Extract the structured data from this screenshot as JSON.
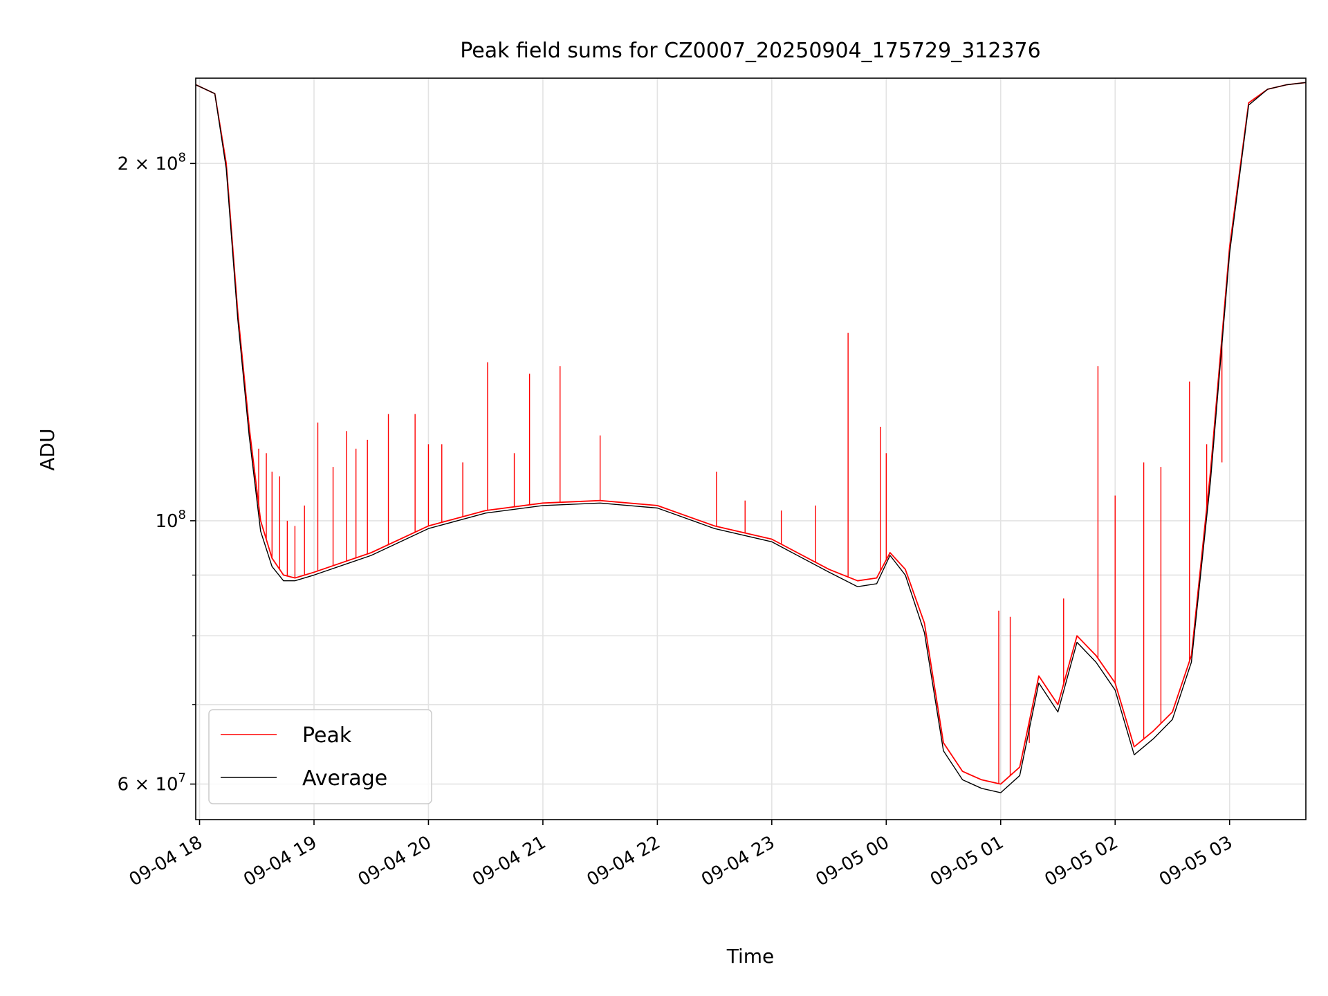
{
  "chart_data": {
    "type": "line",
    "title": "Peak field sums for CZ0007_20250904_175729_312376",
    "xlabel": "Time",
    "ylabel": "ADU",
    "yscale": "log",
    "ylim": [
      56000000,
      236000000
    ],
    "xlim": [
      "2025-09-04 17:58",
      "2025-09-05 03:40"
    ],
    "x_ticks": [
      "09-04 18",
      "09-04 19",
      "09-04 20",
      "09-04 21",
      "09-04 22",
      "09-04 23",
      "09-05 00",
      "09-05 01",
      "09-05 02",
      "09-05 03"
    ],
    "y_ticks": [
      {
        "value": 60000000,
        "label": "6 × 10⁷",
        "mantissa": "6 × 10",
        "exp": "7"
      },
      {
        "value": 100000000,
        "label": "10⁸",
        "mantissa": "10",
        "exp": "8"
      },
      {
        "value": 200000000,
        "label": "2 × 10⁸",
        "mantissa": "2 × 10",
        "exp": "8"
      }
    ],
    "y_minor_ticks": [
      70000000,
      80000000,
      90000000
    ],
    "grid": true,
    "legend": "lower-left",
    "series": [
      {
        "name": "Peak",
        "color": "#ff0000",
        "x": [
          "2025-09-04 17:58",
          "2025-09-04 18:08",
          "2025-09-04 18:14",
          "2025-09-04 18:20",
          "2025-09-04 18:26",
          "2025-09-04 18:32",
          "2025-09-04 18:38",
          "2025-09-04 18:44",
          "2025-09-04 18:50",
          "2025-09-04 19:00",
          "2025-09-04 19:30",
          "2025-09-04 20:00",
          "2025-09-04 20:30",
          "2025-09-04 21:00",
          "2025-09-04 21:30",
          "2025-09-04 22:00",
          "2025-09-04 22:30",
          "2025-09-04 23:00",
          "2025-09-04 23:30",
          "2025-09-04 23:45",
          "2025-09-04 23:55",
          "2025-09-05 00:02",
          "2025-09-05 00:10",
          "2025-09-05 00:20",
          "2025-09-05 00:30",
          "2025-09-05 00:40",
          "2025-09-05 00:50",
          "2025-09-05 01:00",
          "2025-09-05 01:10",
          "2025-09-05 01:20",
          "2025-09-05 01:30",
          "2025-09-05 01:40",
          "2025-09-05 01:50",
          "2025-09-05 02:00",
          "2025-09-05 02:10",
          "2025-09-05 02:20",
          "2025-09-05 02:30",
          "2025-09-05 02:40",
          "2025-09-05 02:50",
          "2025-09-05 03:00",
          "2025-09-05 03:10",
          "2025-09-05 03:20",
          "2025-09-05 03:30",
          "2025-09-05 03:40"
        ],
        "y": [
          233000000,
          229000000,
          200000000,
          150000000,
          120000000,
          100000000,
          93000000,
          90000000,
          89500000,
          90500000,
          94000000,
          99000000,
          102000000,
          103500000,
          104000000,
          103000000,
          99000000,
          96500000,
          91000000,
          89000000,
          89500000,
          94000000,
          91000000,
          82000000,
          65000000,
          61500000,
          60500000,
          60000000,
          62000000,
          74000000,
          70000000,
          80000000,
          77000000,
          73000000,
          64500000,
          66500000,
          69000000,
          77000000,
          110000000,
          170000000,
          225000000,
          231000000,
          233000000,
          234000000
        ]
      },
      {
        "name": "Average",
        "color": "#000000",
        "x": [
          "2025-09-04 17:58",
          "2025-09-04 18:08",
          "2025-09-04 18:14",
          "2025-09-04 18:20",
          "2025-09-04 18:26",
          "2025-09-04 18:32",
          "2025-09-04 18:38",
          "2025-09-04 18:44",
          "2025-09-04 18:50",
          "2025-09-04 19:00",
          "2025-09-04 19:30",
          "2025-09-04 20:00",
          "2025-09-04 20:30",
          "2025-09-04 21:00",
          "2025-09-04 21:30",
          "2025-09-04 22:00",
          "2025-09-04 22:30",
          "2025-09-04 23:00",
          "2025-09-04 23:30",
          "2025-09-04 23:45",
          "2025-09-04 23:55",
          "2025-09-05 00:02",
          "2025-09-05 00:10",
          "2025-09-05 00:20",
          "2025-09-05 00:30",
          "2025-09-05 00:40",
          "2025-09-05 00:50",
          "2025-09-05 01:00",
          "2025-09-05 01:10",
          "2025-09-05 01:20",
          "2025-09-05 01:30",
          "2025-09-05 01:40",
          "2025-09-05 01:50",
          "2025-09-05 02:00",
          "2025-09-05 02:10",
          "2025-09-05 02:20",
          "2025-09-05 02:30",
          "2025-09-05 02:40",
          "2025-09-05 02:50",
          "2025-09-05 03:00",
          "2025-09-05 03:10",
          "2025-09-05 03:20",
          "2025-09-05 03:30",
          "2025-09-05 03:40"
        ],
        "y": [
          233000000,
          229000000,
          198000000,
          148000000,
          118000000,
          98000000,
          91500000,
          89000000,
          89000000,
          90000000,
          93500000,
          98500000,
          101500000,
          103000000,
          103500000,
          102500000,
          98500000,
          96000000,
          90500000,
          88000000,
          88500000,
          93500000,
          90000000,
          80500000,
          64000000,
          60500000,
          59500000,
          59000000,
          61000000,
          73000000,
          69000000,
          79000000,
          76000000,
          72000000,
          63500000,
          65500000,
          68000000,
          76000000,
          108000000,
          168000000,
          224000000,
          231000000,
          233000000,
          234000000
        ]
      }
    ],
    "spikes": {
      "series": "Peak",
      "points": [
        {
          "x": "2025-09-04 18:31",
          "y": 115000000
        },
        {
          "x": "2025-09-04 18:35",
          "y": 114000000
        },
        {
          "x": "2025-09-04 18:38",
          "y": 110000000
        },
        {
          "x": "2025-09-04 18:42",
          "y": 109000000
        },
        {
          "x": "2025-09-04 18:46",
          "y": 100000000
        },
        {
          "x": "2025-09-04 18:50",
          "y": 99000000
        },
        {
          "x": "2025-09-04 18:55",
          "y": 103000000
        },
        {
          "x": "2025-09-04 19:02",
          "y": 121000000
        },
        {
          "x": "2025-09-04 19:10",
          "y": 111000000
        },
        {
          "x": "2025-09-04 19:17",
          "y": 119000000
        },
        {
          "x": "2025-09-04 19:22",
          "y": 115000000
        },
        {
          "x": "2025-09-04 19:28",
          "y": 117000000
        },
        {
          "x": "2025-09-04 19:39",
          "y": 123000000
        },
        {
          "x": "2025-09-04 19:53",
          "y": 123000000
        },
        {
          "x": "2025-09-04 20:00",
          "y": 116000000
        },
        {
          "x": "2025-09-04 20:07",
          "y": 116000000
        },
        {
          "x": "2025-09-04 20:18",
          "y": 112000000
        },
        {
          "x": "2025-09-04 20:31",
          "y": 136000000
        },
        {
          "x": "2025-09-04 20:45",
          "y": 114000000
        },
        {
          "x": "2025-09-04 20:53",
          "y": 133000000
        },
        {
          "x": "2025-09-04 21:09",
          "y": 135000000
        },
        {
          "x": "2025-09-04 21:30",
          "y": 118000000
        },
        {
          "x": "2025-09-04 22:31",
          "y": 110000000
        },
        {
          "x": "2025-09-04 22:46",
          "y": 104000000
        },
        {
          "x": "2025-09-04 23:05",
          "y": 102000000
        },
        {
          "x": "2025-09-04 23:23",
          "y": 103000000
        },
        {
          "x": "2025-09-04 23:40",
          "y": 144000000
        },
        {
          "x": "2025-09-04 23:57",
          "y": 120000000
        },
        {
          "x": "2025-09-05 00:00",
          "y": 114000000
        },
        {
          "x": "2025-09-05 00:59",
          "y": 84000000
        },
        {
          "x": "2025-09-05 01:05",
          "y": 83000000
        },
        {
          "x": "2025-09-05 01:15",
          "y": 65000000
        },
        {
          "x": "2025-09-05 01:33",
          "y": 86000000
        },
        {
          "x": "2025-09-05 01:51",
          "y": 135000000
        },
        {
          "x": "2025-09-05 02:00",
          "y": 105000000
        },
        {
          "x": "2025-09-05 02:15",
          "y": 112000000
        },
        {
          "x": "2025-09-05 02:24",
          "y": 111000000
        },
        {
          "x": "2025-09-05 02:39",
          "y": 131000000
        },
        {
          "x": "2025-09-05 02:48",
          "y": 116000000
        },
        {
          "x": "2025-09-05 02:56",
          "y": 112000000
        }
      ]
    }
  }
}
